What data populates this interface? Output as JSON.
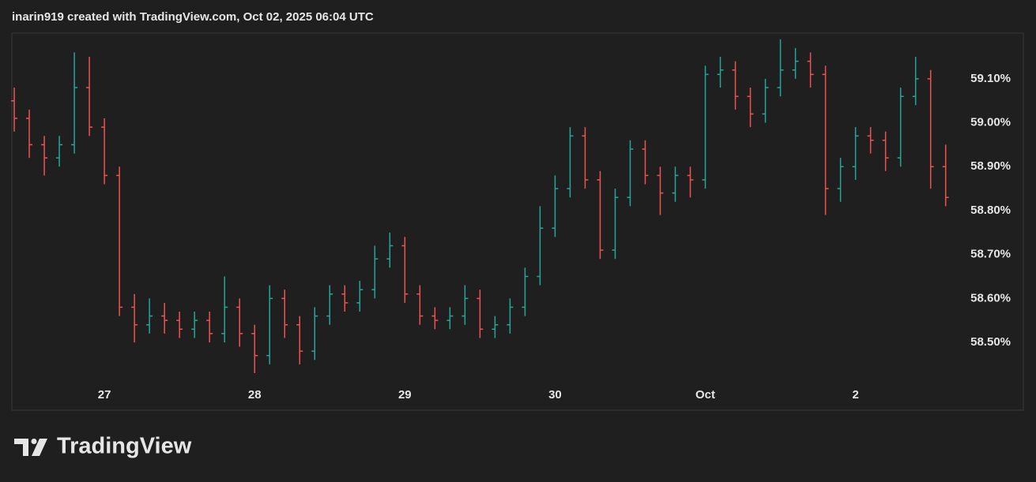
{
  "header": "inarin919 created with TradingView.com, Oct 02, 2025 06:04 UTC",
  "brand": "TradingView",
  "chart_data": {
    "type": "ohlc",
    "up_color": "#26a69a",
    "down_color": "#ef5350",
    "x": [
      26.4,
      26.5,
      26.6,
      26.7,
      26.8,
      26.9,
      27.0,
      27.1,
      27.2,
      27.3,
      27.4,
      27.5,
      27.6,
      27.7,
      27.8,
      27.9,
      28.0,
      28.1,
      28.2,
      28.3,
      28.4,
      28.5,
      28.6,
      28.7,
      28.8,
      28.9,
      29.0,
      29.1,
      29.2,
      29.3,
      29.4,
      29.5,
      29.6,
      29.7,
      29.8,
      29.9,
      30.0,
      30.1,
      30.2,
      30.3,
      30.4,
      30.5,
      30.6,
      30.7,
      30.8,
      30.9,
      31.0,
      31.1,
      31.2,
      31.3,
      31.4,
      31.5,
      31.6,
      31.7,
      31.8,
      31.9,
      32.0,
      32.1,
      32.2,
      32.3,
      32.4,
      32.5,
      32.6
    ],
    "open": [
      59.05,
      59.01,
      58.95,
      58.92,
      58.95,
      59.08,
      58.99,
      58.88,
      58.58,
      58.54,
      58.56,
      58.55,
      58.53,
      58.55,
      58.52,
      58.58,
      58.52,
      58.47,
      58.6,
      58.54,
      58.48,
      58.56,
      58.61,
      58.59,
      58.62,
      58.69,
      58.72,
      58.61,
      58.56,
      58.55,
      58.56,
      58.6,
      58.53,
      58.54,
      58.58,
      58.65,
      58.76,
      58.85,
      58.97,
      58.87,
      58.71,
      58.83,
      58.94,
      58.88,
      58.84,
      58.88,
      58.87,
      59.11,
      59.12,
      59.06,
      59.02,
      59.08,
      59.12,
      59.14,
      59.11,
      58.85,
      58.9,
      58.97,
      58.96,
      58.92,
      59.06,
      59.1,
      58.9
    ],
    "high": [
      59.08,
      59.03,
      58.97,
      58.97,
      59.16,
      59.15,
      59.01,
      58.9,
      58.61,
      58.6,
      58.59,
      58.57,
      58.57,
      58.57,
      58.65,
      58.6,
      58.54,
      58.63,
      58.62,
      58.56,
      58.58,
      58.63,
      58.63,
      58.64,
      58.72,
      58.75,
      58.74,
      58.63,
      58.58,
      58.58,
      58.63,
      58.62,
      58.56,
      58.6,
      58.67,
      58.81,
      58.88,
      58.99,
      58.99,
      58.89,
      58.85,
      58.96,
      58.96,
      58.9,
      58.9,
      58.9,
      59.13,
      59.15,
      59.14,
      59.08,
      59.1,
      59.19,
      59.17,
      59.16,
      59.13,
      58.92,
      58.99,
      58.99,
      58.98,
      59.08,
      59.15,
      59.12,
      58.95
    ],
    "low": [
      58.98,
      58.92,
      58.88,
      58.9,
      58.93,
      58.97,
      58.86,
      58.56,
      58.5,
      58.52,
      58.52,
      58.51,
      58.51,
      58.5,
      58.5,
      58.49,
      58.43,
      58.45,
      58.51,
      58.45,
      58.46,
      58.54,
      58.57,
      58.57,
      58.6,
      58.67,
      58.59,
      58.54,
      58.53,
      58.53,
      58.54,
      58.51,
      58.51,
      58.52,
      58.56,
      58.63,
      58.74,
      58.83,
      58.85,
      58.69,
      58.69,
      58.81,
      58.86,
      58.79,
      58.82,
      58.83,
      58.85,
      59.08,
      59.03,
      58.99,
      59.0,
      59.06,
      59.1,
      59.08,
      58.79,
      58.82,
      58.87,
      58.93,
      58.89,
      58.9,
      59.04,
      58.85,
      58.81
    ],
    "close": [
      59.01,
      58.95,
      58.92,
      58.95,
      59.08,
      58.99,
      58.88,
      58.58,
      58.54,
      58.56,
      58.55,
      58.53,
      58.55,
      58.52,
      58.58,
      58.52,
      58.47,
      58.6,
      58.54,
      58.48,
      58.56,
      58.61,
      58.59,
      58.62,
      58.69,
      58.72,
      58.61,
      58.56,
      58.55,
      58.56,
      58.6,
      58.53,
      58.54,
      58.58,
      58.65,
      58.76,
      58.85,
      58.97,
      58.87,
      58.71,
      58.83,
      58.94,
      58.88,
      58.84,
      58.88,
      58.87,
      59.11,
      59.12,
      59.06,
      59.02,
      59.08,
      59.12,
      59.14,
      59.11,
      58.85,
      58.9,
      58.97,
      58.96,
      58.92,
      59.06,
      59.1,
      58.9,
      58.83
    ],
    "xlim": [
      26.384,
      32.67
    ],
    "ylim": [
      58.403,
      59.204
    ],
    "xticks": [
      27,
      28,
      29,
      30,
      {
        "value": 31,
        "label": "Oct"
      },
      {
        "value": 32,
        "label": "2"
      }
    ],
    "yticks": [
      {
        "value": 58.5,
        "label": "58.50%"
      },
      {
        "value": 58.6,
        "label": "58.60%"
      },
      {
        "value": 58.7,
        "label": "58.70%"
      },
      {
        "value": 58.8,
        "label": "58.80%"
      },
      {
        "value": 58.9,
        "label": "58.90%"
      },
      {
        "value": 59.0,
        "label": "59.00%"
      },
      {
        "value": 59.1,
        "label": "59.10%"
      }
    ]
  }
}
